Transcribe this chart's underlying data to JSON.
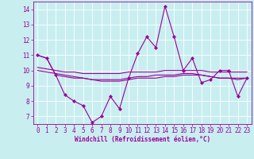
{
  "xlabel": "Windchill (Refroidissement éolien,°C)",
  "background_color": "#c8eef0",
  "grid_color": "#ffffff",
  "line_color": "#990099",
  "x": [
    0,
    1,
    2,
    3,
    4,
    5,
    6,
    7,
    8,
    9,
    10,
    11,
    12,
    13,
    14,
    15,
    16,
    17,
    18,
    19,
    20,
    21,
    22,
    23
  ],
  "y_main": [
    11.0,
    10.8,
    9.7,
    8.4,
    8.0,
    7.7,
    6.6,
    7.0,
    8.3,
    7.5,
    9.5,
    11.1,
    12.2,
    11.5,
    14.2,
    12.2,
    10.0,
    10.8,
    9.2,
    9.4,
    10.0,
    10.0,
    8.3,
    9.5
  ],
  "y_trend1": [
    11.0,
    10.8,
    9.7,
    9.6,
    9.5,
    9.5,
    9.4,
    9.4,
    9.4,
    9.4,
    9.5,
    9.6,
    9.6,
    9.7,
    9.7,
    9.7,
    9.8,
    9.8,
    9.7,
    9.6,
    9.5,
    9.5,
    9.5,
    9.5
  ],
  "y_trend2": [
    10.0,
    9.9,
    9.8,
    9.7,
    9.6,
    9.5,
    9.4,
    9.3,
    9.3,
    9.3,
    9.4,
    9.5,
    9.5,
    9.5,
    9.6,
    9.6,
    9.7,
    9.7,
    9.7,
    9.6,
    9.5,
    9.5,
    9.4,
    9.5
  ],
  "y_trend3": [
    10.2,
    10.1,
    10.0,
    9.9,
    9.9,
    9.8,
    9.8,
    9.8,
    9.8,
    9.8,
    9.9,
    9.9,
    9.9,
    9.9,
    10.0,
    10.0,
    10.0,
    10.0,
    10.0,
    9.9,
    9.9,
    9.9,
    9.9,
    9.9
  ],
  "xlim": [
    -0.5,
    23.5
  ],
  "ylim": [
    6.5,
    14.5
  ],
  "yticks": [
    7,
    8,
    9,
    10,
    11,
    12,
    13,
    14
  ],
  "xticks": [
    0,
    1,
    2,
    3,
    4,
    5,
    6,
    7,
    8,
    9,
    10,
    11,
    12,
    13,
    14,
    15,
    16,
    17,
    18,
    19,
    20,
    21,
    22,
    23
  ],
  "xlabel_fontsize": 5.5,
  "tick_fontsize": 5.5,
  "linewidth": 0.8,
  "marker_size": 2.2
}
